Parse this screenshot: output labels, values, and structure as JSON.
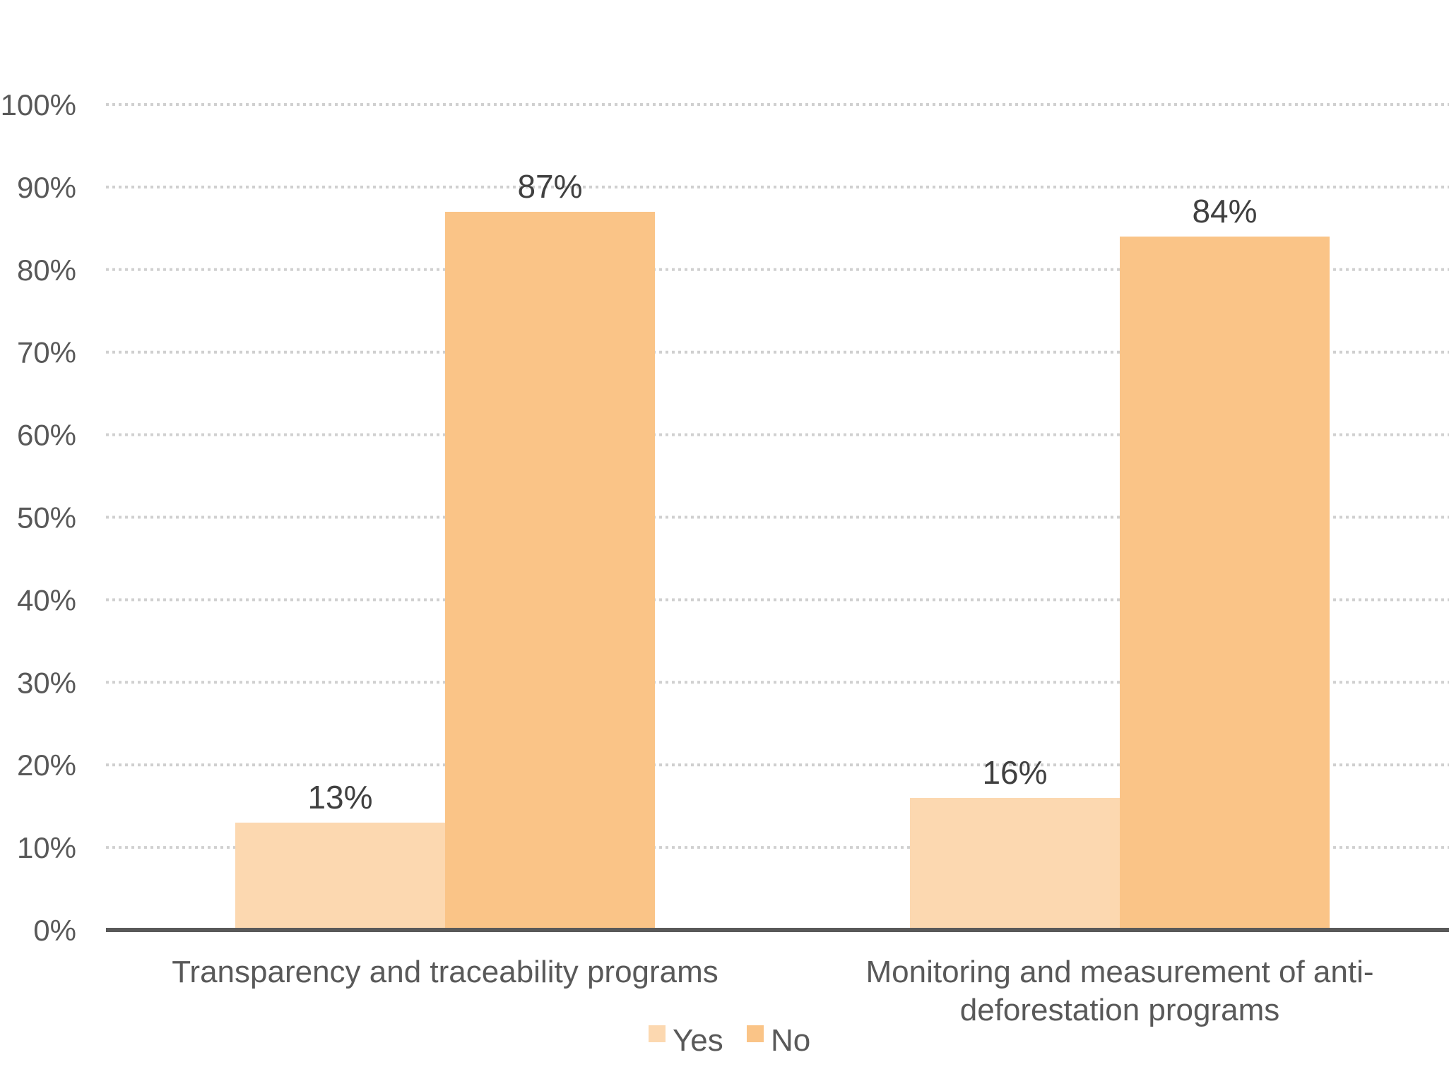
{
  "chart_data": {
    "type": "bar",
    "title": "",
    "xlabel": "",
    "ylabel": "",
    "ylim": [
      0,
      100
    ],
    "y_ticks": [
      0,
      10,
      20,
      30,
      40,
      50,
      60,
      70,
      80,
      90,
      100
    ],
    "y_tick_format": "{v}%",
    "grid": true,
    "legend_position": "bottom",
    "categories": [
      [
        "Transparency and traceability programs"
      ],
      [
        "Monitoring and measurement of anti-",
        "deforestation programs"
      ]
    ],
    "series": [
      {
        "name": "Yes",
        "values": [
          13,
          16
        ],
        "color": "#fcd8b0"
      },
      {
        "name": "No",
        "values": [
          87,
          84
        ],
        "color": "#fac487"
      }
    ],
    "data_labels": [
      [
        "13%",
        "16%"
      ],
      [
        "87%",
        "84%"
      ]
    ]
  },
  "colors": {
    "gridline": "#d0d0d0",
    "axis": "#595959",
    "text": "#595959",
    "data_label": "#404040"
  }
}
